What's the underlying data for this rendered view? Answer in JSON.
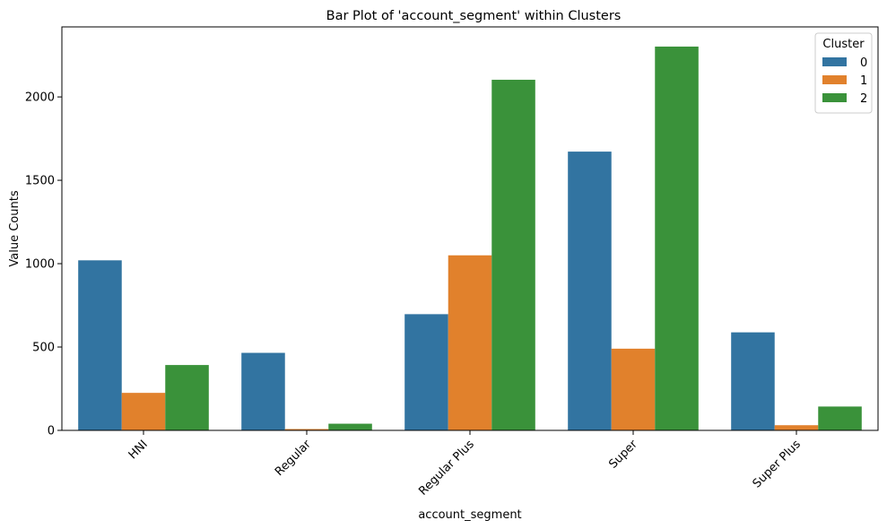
{
  "chart_data": {
    "type": "bar",
    "title": "Bar Plot of 'account_segment' within Clusters",
    "xlabel": "account_segment",
    "ylabel": "Value Counts",
    "categories": [
      "HNI",
      "Regular",
      "Regular Plus",
      "Super",
      "Super Plus"
    ],
    "series": [
      {
        "name": "0",
        "color": "#3274a1",
        "values": [
          1020,
          465,
          697,
          1672,
          588
        ]
      },
      {
        "name": "1",
        "color": "#e1812c",
        "values": [
          225,
          8,
          1050,
          490,
          31
        ]
      },
      {
        "name": "2",
        "color": "#3a923a",
        "values": [
          392,
          40,
          2103,
          2302,
          143
        ]
      }
    ],
    "ylim": [
      0,
      2420
    ],
    "yticks": [
      0,
      500,
      1000,
      1500,
      2000
    ],
    "grid": false,
    "legend": {
      "title": "Cluster",
      "placement": "top-right"
    }
  }
}
